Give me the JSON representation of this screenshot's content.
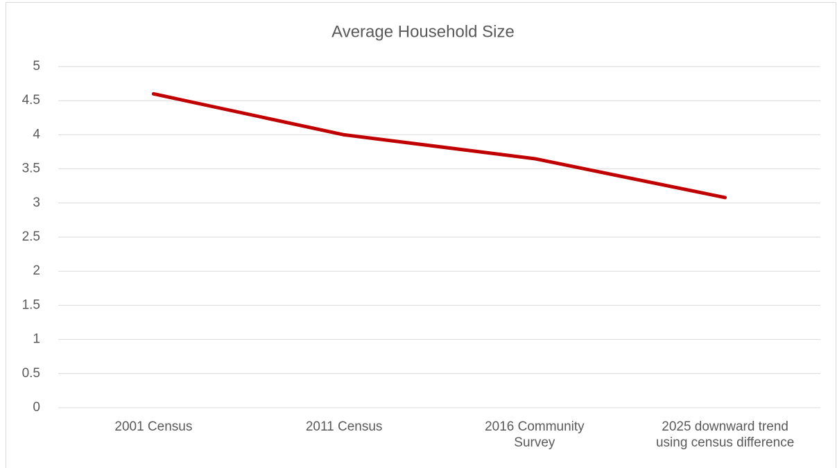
{
  "chart_data": {
    "type": "line",
    "title": "Average Household Size",
    "categories": [
      "2001 Census",
      "2011 Census",
      "2016 Community Survey",
      "2025 downward trend using census difference"
    ],
    "series": [
      {
        "name": "Average Household Size",
        "color": "#c00000",
        "values": [
          4.6,
          4.0,
          3.65,
          3.08
        ]
      }
    ],
    "ylim": [
      0,
      5
    ],
    "yticks": [
      0,
      0.5,
      1,
      1.5,
      2,
      2.5,
      3,
      3.5,
      4,
      4.5,
      5
    ],
    "grid": true
  }
}
